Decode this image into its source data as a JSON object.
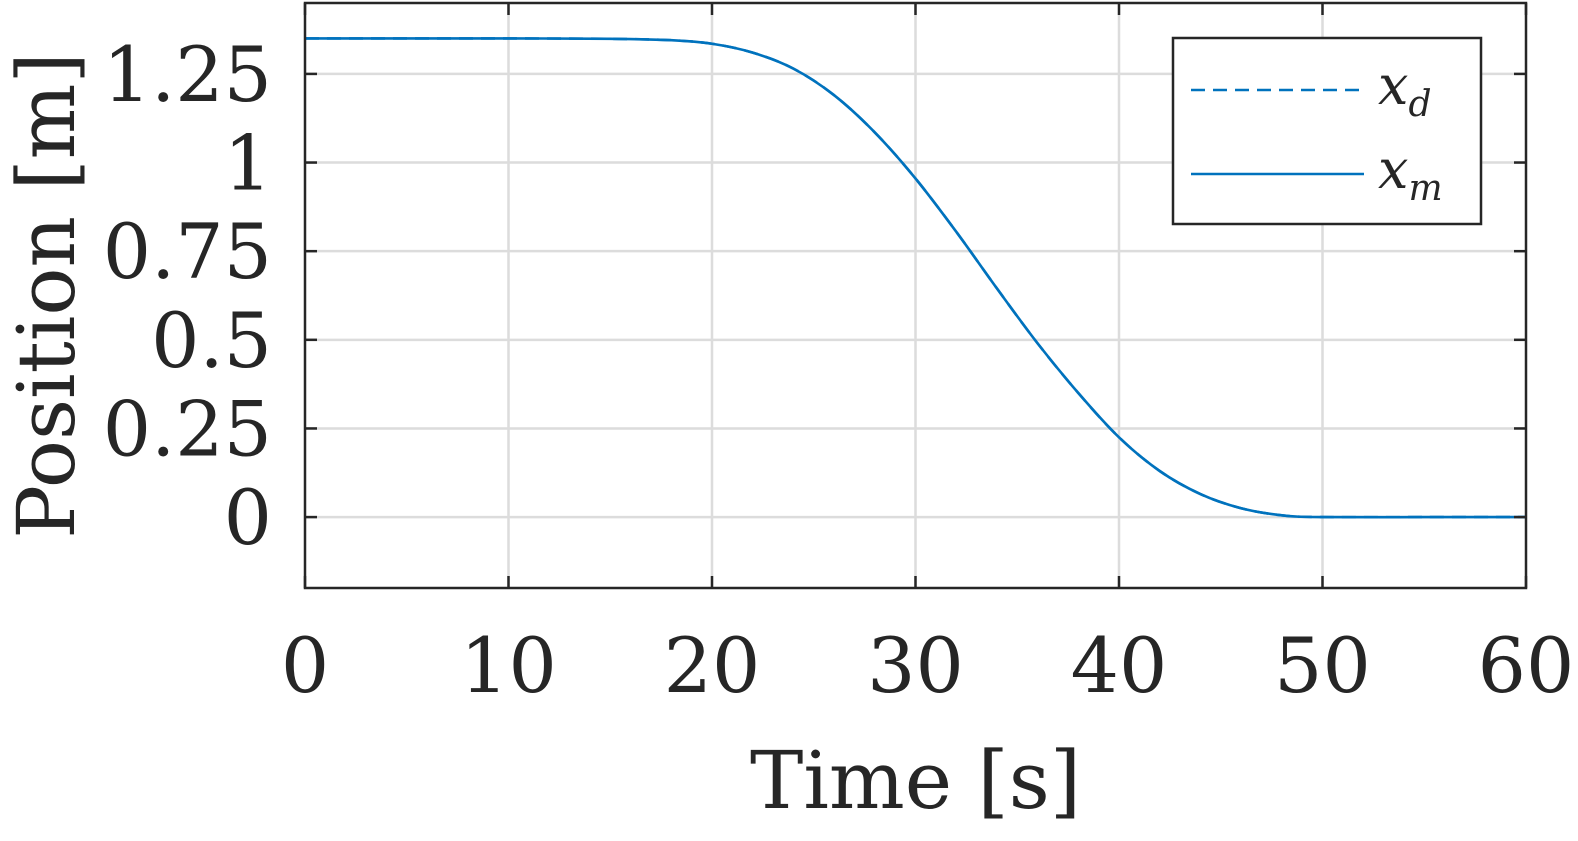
{
  "chart_data": {
    "type": "line",
    "xlabel": "Time [s]",
    "ylabel": "Position [m]",
    "xlim": [
      0,
      60
    ],
    "ylim": [
      -0.2,
      1.45
    ],
    "xticks": [
      0,
      10,
      20,
      30,
      40,
      50,
      60
    ],
    "xtick_labels": [
      "0",
      "10",
      "20",
      "30",
      "40",
      "50",
      "60"
    ],
    "yticks": [
      0,
      0.25,
      0.5,
      0.75,
      1,
      1.25
    ],
    "ytick_labels": [
      "0",
      "0.25",
      "0.5",
      "0.75",
      "1",
      "1.25"
    ],
    "grid": true,
    "legend_position": "top-right",
    "line_color": "#0072BD",
    "x": [
      0,
      5,
      10,
      15,
      18,
      20,
      22,
      24,
      26,
      28,
      30,
      32,
      34,
      36,
      38,
      40,
      42,
      44,
      46,
      48,
      50,
      55,
      60
    ],
    "series": [
      {
        "name": "x_d",
        "legend_main": "x",
        "legend_sub": "d",
        "style": "dashed",
        "values": [
          1.35,
          1.35,
          1.35,
          1.349,
          1.345,
          1.335,
          1.31,
          1.265,
          1.19,
          1.085,
          0.955,
          0.805,
          0.645,
          0.49,
          0.35,
          0.225,
          0.13,
          0.065,
          0.025,
          0.005,
          0,
          0,
          0
        ]
      },
      {
        "name": "x_m",
        "legend_main": "x",
        "legend_sub": "m",
        "style": "solid",
        "values": [
          1.35,
          1.35,
          1.35,
          1.349,
          1.345,
          1.335,
          1.31,
          1.265,
          1.19,
          1.085,
          0.955,
          0.805,
          0.645,
          0.49,
          0.35,
          0.225,
          0.13,
          0.065,
          0.025,
          0.005,
          0,
          0,
          0
        ]
      }
    ]
  }
}
